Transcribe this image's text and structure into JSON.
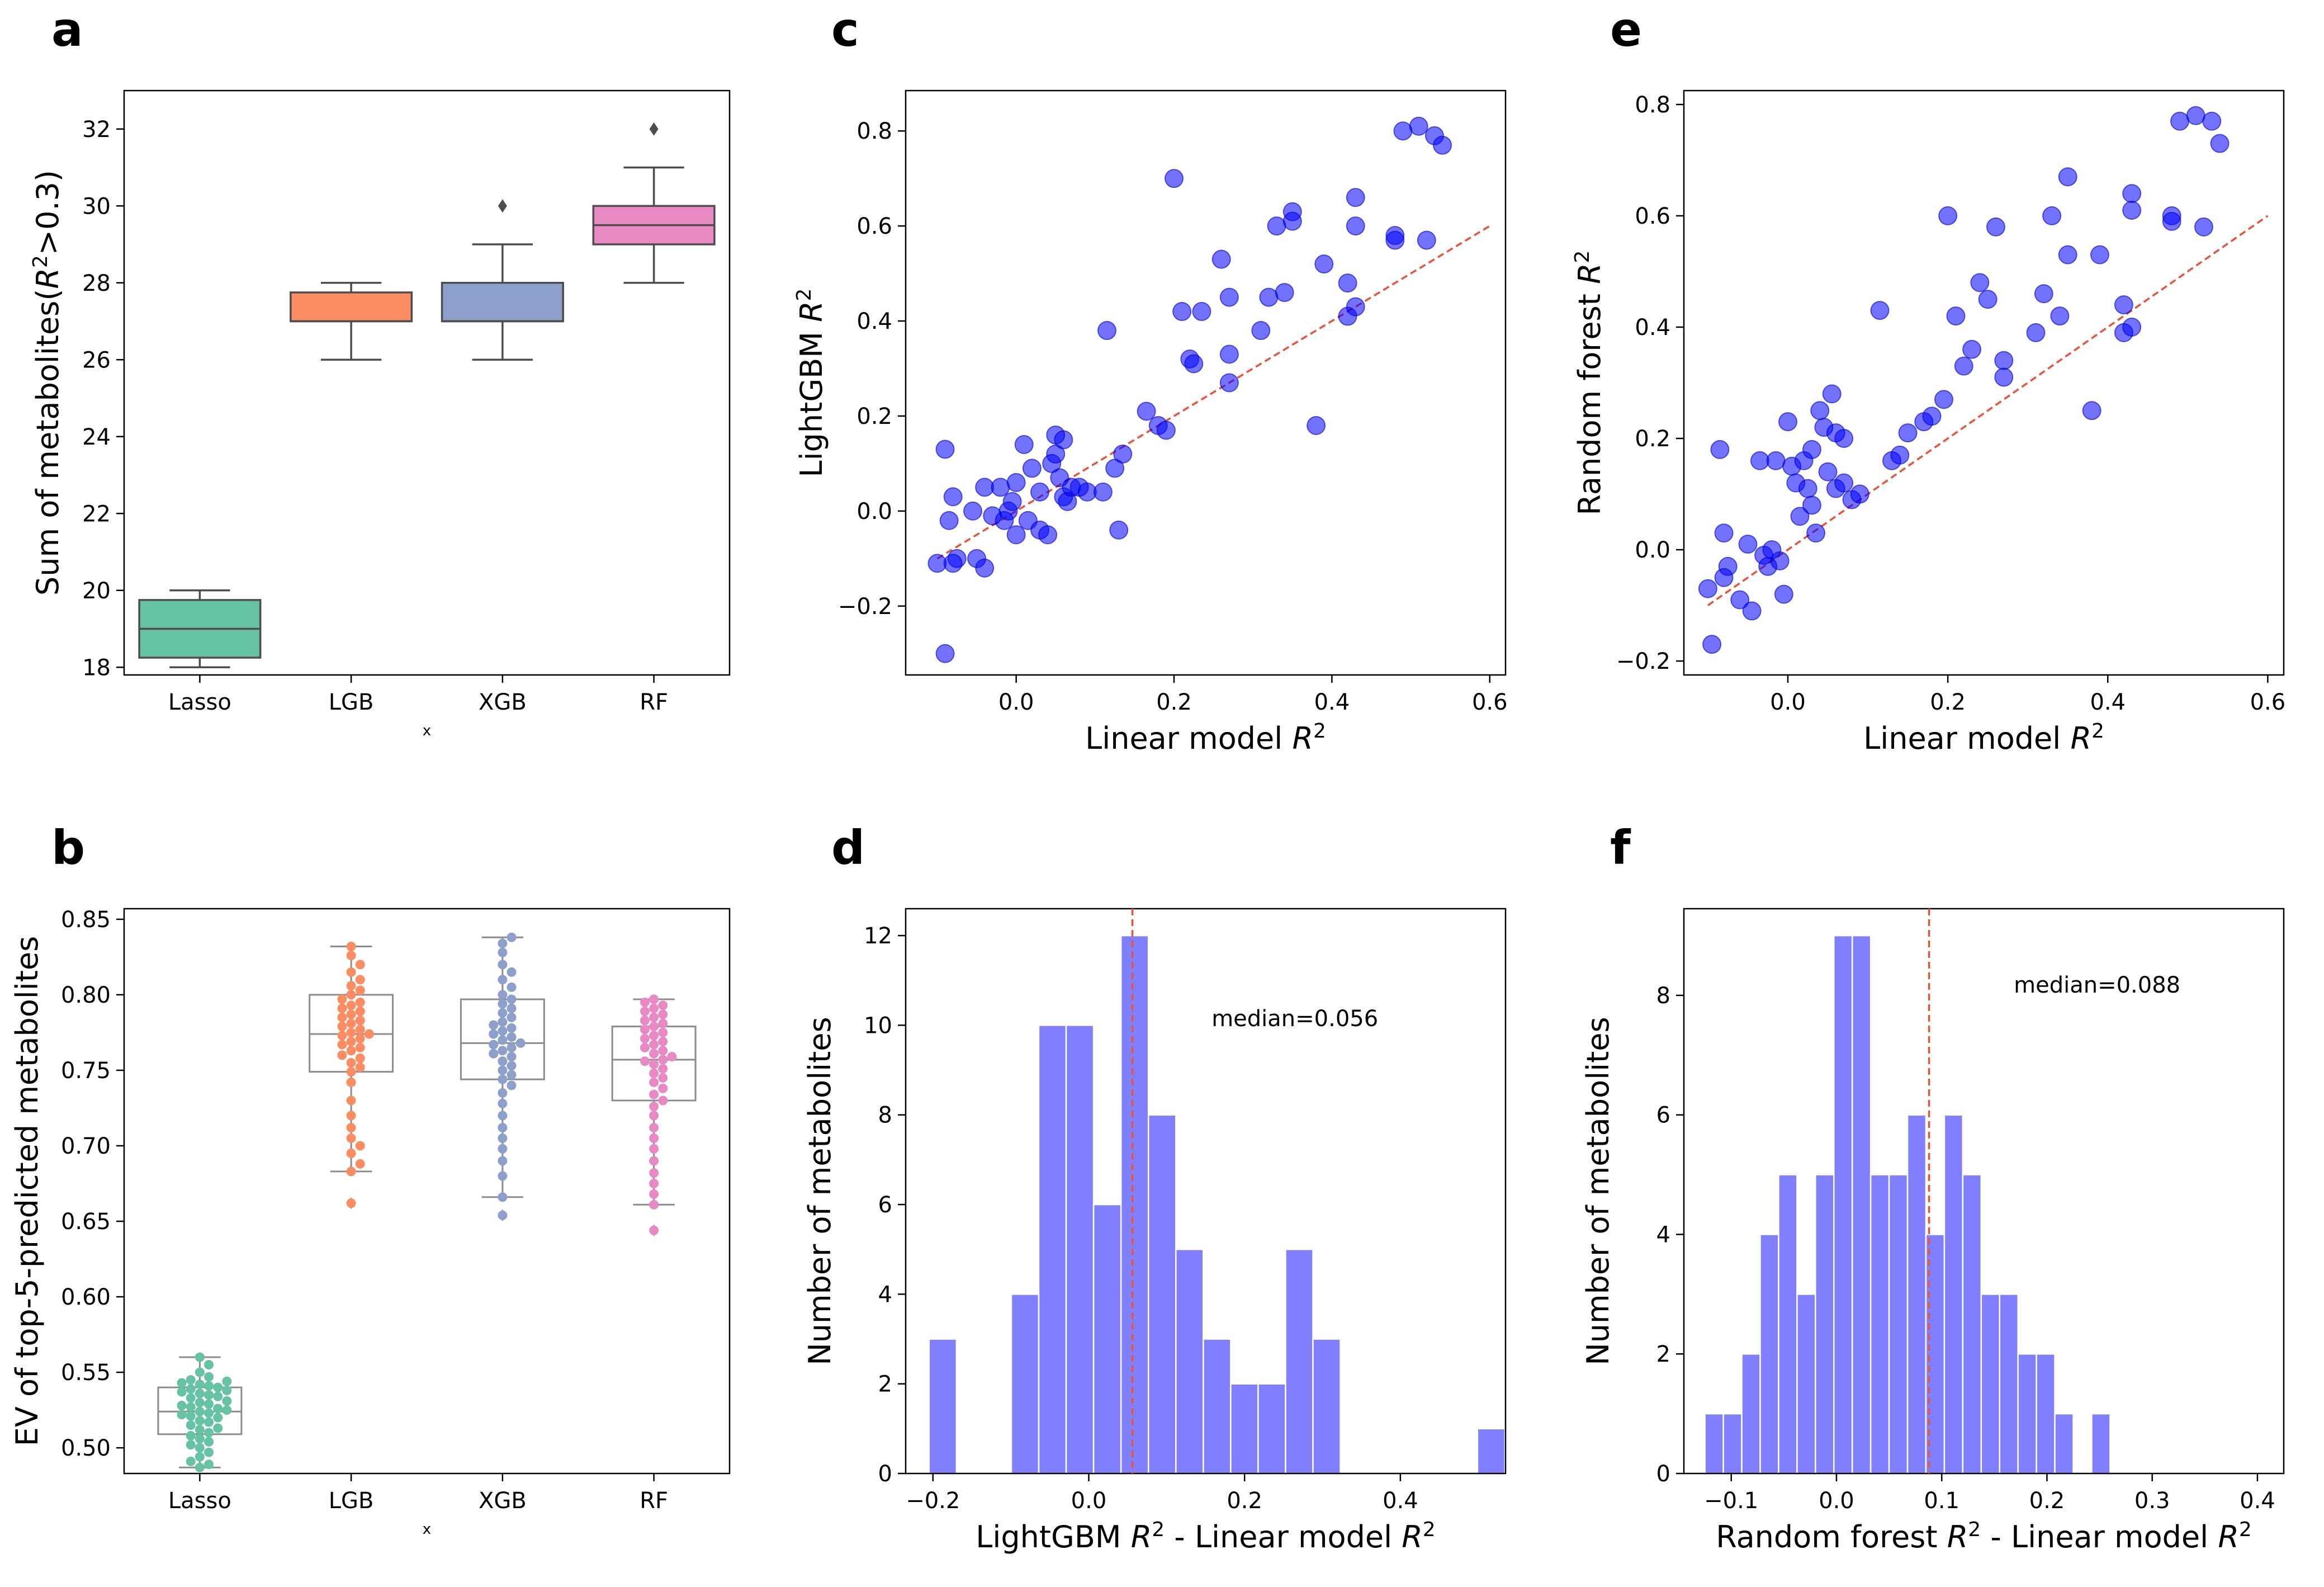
{
  "chart_data": [
    {
      "panel": "a",
      "type": "box",
      "categories": [
        "Lasso",
        "LGB",
        "XGB",
        "RF"
      ],
      "xlabel": "x",
      "ylabel": "Sum of metabolites(R²>0.3)",
      "ylim": [
        17.8,
        33.0
      ],
      "yticks": [
        18,
        20,
        22,
        24,
        26,
        28,
        30,
        32
      ],
      "colors": [
        "#66c2a5",
        "#fc8d62",
        "#8da0cb",
        "#e78ac3"
      ],
      "boxes": [
        {
          "category": "Lasso",
          "whisker_low": 18,
          "q1": 18.25,
          "median": 19,
          "q3": 19.75,
          "whisker_high": 20,
          "outliers": []
        },
        {
          "category": "LGB",
          "whisker_low": 26,
          "q1": 27,
          "median": 27,
          "q3": 27.75,
          "whisker_high": 28,
          "outliers": []
        },
        {
          "category": "XGB",
          "whisker_low": 26,
          "q1": 27,
          "median": 27,
          "q3": 28,
          "whisker_high": 29,
          "outliers": [
            30
          ]
        },
        {
          "category": "RF",
          "whisker_low": 28,
          "q1": 29,
          "median": 29.5,
          "q3": 30,
          "whisker_high": 31,
          "outliers": [
            32
          ]
        }
      ]
    },
    {
      "panel": "b",
      "type": "box_swarm",
      "categories": [
        "Lasso",
        "LGB",
        "XGB",
        "RF"
      ],
      "xlabel": "x",
      "ylabel": "EV of top-5-predicted metabolites",
      "ylim": [
        0.483,
        0.857
      ],
      "yticks": [
        0.5,
        0.55,
        0.6,
        0.65,
        0.7,
        0.75,
        0.8,
        0.85
      ],
      "colors": [
        "#66c2a5",
        "#fc8d62",
        "#8da0cb",
        "#e78ac3"
      ],
      "boxes": [
        {
          "category": "Lasso",
          "whisker_low": 0.487,
          "q1": 0.509,
          "median": 0.524,
          "q3": 0.54,
          "whisker_high": 0.56,
          "outliers": []
        },
        {
          "category": "LGB",
          "whisker_low": 0.683,
          "q1": 0.749,
          "median": 0.774,
          "q3": 0.8,
          "whisker_high": 0.832,
          "outliers": [
            0.662
          ]
        },
        {
          "category": "XGB",
          "whisker_low": 0.666,
          "q1": 0.744,
          "median": 0.768,
          "q3": 0.797,
          "whisker_high": 0.838,
          "outliers": [
            0.654
          ]
        },
        {
          "category": "RF",
          "whisker_low": 0.661,
          "q1": 0.73,
          "median": 0.757,
          "q3": 0.779,
          "whisker_high": 0.797,
          "outliers": [
            0.644
          ]
        }
      ],
      "points": [
        [
          0.487,
          0.489,
          0.491,
          0.494,
          0.497,
          0.5,
          0.502,
          0.504,
          0.506,
          0.508,
          0.51,
          0.512,
          0.513,
          0.515,
          0.517,
          0.518,
          0.52,
          0.521,
          0.522,
          0.523,
          0.524,
          0.525,
          0.526,
          0.527,
          0.528,
          0.529,
          0.53,
          0.531,
          0.533,
          0.534,
          0.535,
          0.536,
          0.537,
          0.538,
          0.539,
          0.54,
          0.541,
          0.542,
          0.543,
          0.544,
          0.545,
          0.547,
          0.55,
          0.555,
          0.56
        ],
        [
          0.662,
          0.683,
          0.688,
          0.695,
          0.7,
          0.705,
          0.712,
          0.72,
          0.73,
          0.742,
          0.749,
          0.752,
          0.755,
          0.758,
          0.76,
          0.763,
          0.765,
          0.767,
          0.769,
          0.771,
          0.773,
          0.774,
          0.775,
          0.777,
          0.779,
          0.781,
          0.783,
          0.785,
          0.787,
          0.789,
          0.791,
          0.793,
          0.795,
          0.797,
          0.8,
          0.803,
          0.806,
          0.81,
          0.815,
          0.82,
          0.826,
          0.832
        ],
        [
          0.654,
          0.666,
          0.68,
          0.69,
          0.698,
          0.705,
          0.712,
          0.72,
          0.728,
          0.735,
          0.74,
          0.744,
          0.747,
          0.75,
          0.753,
          0.756,
          0.759,
          0.761,
          0.763,
          0.765,
          0.767,
          0.768,
          0.77,
          0.772,
          0.774,
          0.776,
          0.778,
          0.78,
          0.782,
          0.785,
          0.788,
          0.791,
          0.794,
          0.797,
          0.8,
          0.805,
          0.81,
          0.815,
          0.82,
          0.828,
          0.834,
          0.838
        ],
        [
          0.644,
          0.661,
          0.668,
          0.675,
          0.682,
          0.69,
          0.698,
          0.705,
          0.712,
          0.72,
          0.726,
          0.73,
          0.734,
          0.738,
          0.742,
          0.745,
          0.748,
          0.751,
          0.754,
          0.756,
          0.757,
          0.759,
          0.761,
          0.763,
          0.765,
          0.767,
          0.769,
          0.771,
          0.773,
          0.775,
          0.777,
          0.779,
          0.781,
          0.783,
          0.785,
          0.787,
          0.789,
          0.791,
          0.793,
          0.795,
          0.797
        ]
      ]
    },
    {
      "panel": "c",
      "type": "scatter",
      "xlabel": "Linear model R²",
      "ylabel": "LightGBM R²",
      "xlim": [
        -0.14,
        0.62
      ],
      "ylim": [
        -0.345,
        0.885
      ],
      "xticks": [
        0.0,
        0.2,
        0.4,
        0.6
      ],
      "yticks": [
        -0.2,
        0.0,
        0.2,
        0.4,
        0.6,
        0.8
      ],
      "reference_line": [
        [
          -0.1,
          -0.1
        ],
        [
          0.6,
          0.6
        ]
      ],
      "points": [
        [
          -0.1,
          -0.11
        ],
        [
          -0.09,
          -0.3
        ],
        [
          -0.09,
          0.13
        ],
        [
          -0.08,
          0.03
        ],
        [
          -0.085,
          -0.02
        ],
        [
          -0.075,
          -0.1
        ],
        [
          -0.08,
          -0.11
        ],
        [
          -0.05,
          -0.1
        ],
        [
          -0.04,
          -0.12
        ],
        [
          -0.055,
          0.0
        ],
        [
          -0.04,
          0.05
        ],
        [
          -0.03,
          -0.01
        ],
        [
          -0.02,
          0.05
        ],
        [
          -0.015,
          -0.02
        ],
        [
          -0.01,
          0.0
        ],
        [
          -0.005,
          0.02
        ],
        [
          0.0,
          -0.05
        ],
        [
          0.0,
          0.06
        ],
        [
          0.01,
          0.14
        ],
        [
          0.015,
          -0.02
        ],
        [
          0.02,
          0.09
        ],
        [
          0.03,
          0.04
        ],
        [
          0.03,
          -0.04
        ],
        [
          0.04,
          -0.05
        ],
        [
          0.045,
          0.1
        ],
        [
          0.05,
          0.16
        ],
        [
          0.05,
          0.12
        ],
        [
          0.055,
          0.07
        ],
        [
          0.06,
          0.15
        ],
        [
          0.06,
          0.03
        ],
        [
          0.065,
          0.02
        ],
        [
          0.07,
          0.05
        ],
        [
          0.08,
          0.05
        ],
        [
          0.09,
          0.04
        ],
        [
          0.11,
          0.04
        ],
        [
          0.115,
          0.38
        ],
        [
          0.125,
          0.09
        ],
        [
          0.13,
          -0.04
        ],
        [
          0.135,
          0.12
        ],
        [
          0.165,
          0.21
        ],
        [
          0.18,
          0.18
        ],
        [
          0.19,
          0.17
        ],
        [
          0.2,
          0.7
        ],
        [
          0.21,
          0.42
        ],
        [
          0.22,
          0.32
        ],
        [
          0.225,
          0.31
        ],
        [
          0.235,
          0.42
        ],
        [
          0.26,
          0.53
        ],
        [
          0.27,
          0.45
        ],
        [
          0.27,
          0.33
        ],
        [
          0.27,
          0.27
        ],
        [
          0.31,
          0.38
        ],
        [
          0.32,
          0.45
        ],
        [
          0.33,
          0.6
        ],
        [
          0.34,
          0.46
        ],
        [
          0.35,
          0.63
        ],
        [
          0.35,
          0.61
        ],
        [
          0.38,
          0.18
        ],
        [
          0.39,
          0.52
        ],
        [
          0.42,
          0.48
        ],
        [
          0.42,
          0.41
        ],
        [
          0.43,
          0.66
        ],
        [
          0.43,
          0.6
        ],
        [
          0.43,
          0.43
        ],
        [
          0.48,
          0.58
        ],
        [
          0.48,
          0.57
        ],
        [
          0.49,
          0.8
        ],
        [
          0.51,
          0.81
        ],
        [
          0.52,
          0.57
        ],
        [
          0.53,
          0.79
        ],
        [
          0.54,
          0.77
        ]
      ]
    },
    {
      "panel": "d",
      "type": "histogram",
      "xlabel": "LightGBM R² - Linear model R²",
      "ylabel": "Number of metabolites",
      "xlim": [
        -0.235,
        0.535
      ],
      "ylim": [
        0,
        12.6
      ],
      "xticks": [
        -0.2,
        0.0,
        0.2,
        0.4
      ],
      "yticks": [
        0,
        2,
        4,
        6,
        8,
        10,
        12
      ],
      "bin_start": -0.205,
      "bin_width": 0.0352,
      "counts": [
        3,
        0,
        0,
        4,
        10,
        10,
        6,
        12,
        8,
        5,
        3,
        2,
        2,
        5,
        3,
        0,
        0,
        0,
        0,
        0,
        1
      ],
      "median": 0.056,
      "annotation": "median=0.056"
    },
    {
      "panel": "e",
      "type": "scatter",
      "xlabel": "Linear model R²",
      "ylabel": "Random forest R²",
      "xlim": [
        -0.13,
        0.62
      ],
      "ylim": [
        -0.225,
        0.825
      ],
      "xticks": [
        0.0,
        0.2,
        0.4,
        0.6
      ],
      "yticks": [
        -0.2,
        0.0,
        0.2,
        0.4,
        0.6,
        0.8
      ],
      "reference_line": [
        [
          -0.1,
          -0.1
        ],
        [
          0.6,
          0.6
        ]
      ],
      "points": [
        [
          -0.1,
          -0.07
        ],
        [
          -0.095,
          -0.17
        ],
        [
          -0.085,
          0.18
        ],
        [
          -0.08,
          0.03
        ],
        [
          -0.075,
          -0.03
        ],
        [
          -0.08,
          -0.05
        ],
        [
          -0.06,
          -0.09
        ],
        [
          -0.05,
          0.01
        ],
        [
          -0.045,
          -0.11
        ],
        [
          -0.035,
          0.16
        ],
        [
          -0.03,
          -0.01
        ],
        [
          -0.025,
          -0.03
        ],
        [
          -0.02,
          0.0
        ],
        [
          -0.015,
          0.16
        ],
        [
          -0.01,
          -0.02
        ],
        [
          -0.005,
          -0.08
        ],
        [
          0.0,
          0.23
        ],
        [
          0.005,
          0.15
        ],
        [
          0.01,
          0.12
        ],
        [
          0.015,
          0.06
        ],
        [
          0.02,
          0.16
        ],
        [
          0.025,
          0.11
        ],
        [
          0.03,
          0.18
        ],
        [
          0.03,
          0.08
        ],
        [
          0.035,
          0.03
        ],
        [
          0.04,
          0.25
        ],
        [
          0.045,
          0.22
        ],
        [
          0.05,
          0.14
        ],
        [
          0.055,
          0.28
        ],
        [
          0.06,
          0.21
        ],
        [
          0.06,
          0.11
        ],
        [
          0.07,
          0.2
        ],
        [
          0.07,
          0.12
        ],
        [
          0.08,
          0.09
        ],
        [
          0.09,
          0.1
        ],
        [
          0.115,
          0.43
        ],
        [
          0.13,
          0.16
        ],
        [
          0.14,
          0.17
        ],
        [
          0.15,
          0.21
        ],
        [
          0.17,
          0.23
        ],
        [
          0.18,
          0.24
        ],
        [
          0.195,
          0.27
        ],
        [
          0.2,
          0.6
        ],
        [
          0.21,
          0.42
        ],
        [
          0.22,
          0.33
        ],
        [
          0.23,
          0.36
        ],
        [
          0.24,
          0.48
        ],
        [
          0.25,
          0.45
        ],
        [
          0.26,
          0.58
        ],
        [
          0.27,
          0.34
        ],
        [
          0.27,
          0.31
        ],
        [
          0.31,
          0.39
        ],
        [
          0.32,
          0.46
        ],
        [
          0.33,
          0.6
        ],
        [
          0.34,
          0.42
        ],
        [
          0.35,
          0.67
        ],
        [
          0.35,
          0.53
        ],
        [
          0.38,
          0.25
        ],
        [
          0.39,
          0.53
        ],
        [
          0.42,
          0.44
        ],
        [
          0.42,
          0.39
        ],
        [
          0.43,
          0.64
        ],
        [
          0.43,
          0.61
        ],
        [
          0.43,
          0.4
        ],
        [
          0.48,
          0.6
        ],
        [
          0.48,
          0.59
        ],
        [
          0.49,
          0.77
        ],
        [
          0.51,
          0.78
        ],
        [
          0.52,
          0.58
        ],
        [
          0.53,
          0.77
        ],
        [
          0.54,
          0.73
        ]
      ]
    },
    {
      "panel": "f",
      "type": "histogram",
      "xlabel": "Random forest R² - Linear model R²",
      "ylabel": "Number of metabolites",
      "xlim": [
        -0.145,
        0.425
      ],
      "ylim": [
        0,
        9.45
      ],
      "xticks": [
        -0.1,
        0.0,
        0.1,
        0.2,
        0.3,
        0.4
      ],
      "yticks": [
        0,
        2,
        4,
        6,
        8
      ],
      "bin_start": -0.125,
      "bin_width": 0.0175,
      "counts": [
        1,
        1,
        2,
        4,
        5,
        3,
        5,
        9,
        9,
        5,
        5,
        6,
        4,
        6,
        5,
        3,
        3,
        2,
        2,
        1,
        0,
        1
      ],
      "median": 0.088,
      "annotation": "median=0.088"
    }
  ]
}
